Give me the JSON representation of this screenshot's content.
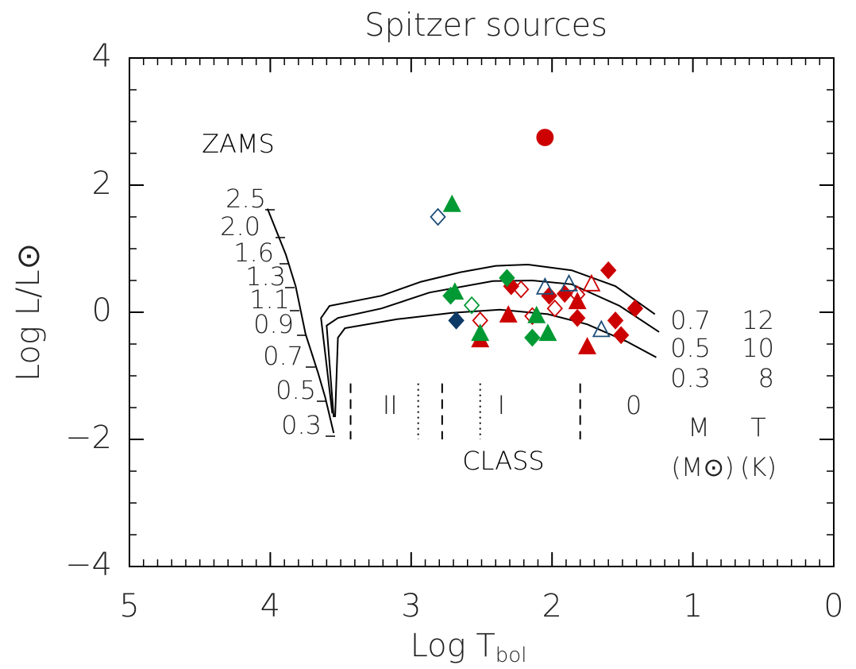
{
  "chart_data": {
    "type": "scatter",
    "title": "Spitzer sources",
    "xlabel": "Log T",
    "xlabel_sub": "bol",
    "ylabel": "Log L/L⊙",
    "xlim": [
      5,
      0
    ],
    "ylim": [
      -4,
      4
    ],
    "xticks": [
      5,
      4,
      3,
      2,
      1,
      0
    ],
    "yticks": [
      {
        "value": -4,
        "label": "−4"
      },
      {
        "value": -2,
        "label": "−2"
      },
      0,
      2,
      4
    ],
    "series": [
      {
        "color": "#cc0000",
        "marker": "circle",
        "filled": true,
        "x": [
          2.05
        ],
        "y": [
          2.75
        ]
      },
      {
        "color": "#cc0000",
        "marker": "diamond",
        "filled": true,
        "x": [
          2.29,
          2.02,
          1.91,
          1.82,
          1.6,
          1.55,
          1.51,
          1.41
        ],
        "y": [
          0.41,
          0.26,
          0.29,
          -0.09,
          0.66,
          -0.13,
          -0.36,
          0.06
        ]
      },
      {
        "color": "#cc0000",
        "marker": "diamond",
        "filled": false,
        "x": [
          2.51,
          2.22,
          2.14,
          1.98,
          1.82
        ],
        "y": [
          -0.13,
          0.36,
          -0.06,
          0.06,
          0.28
        ]
      },
      {
        "color": "#cc0000",
        "marker": "triangle",
        "filled": true,
        "x": [
          2.51,
          2.31,
          1.82,
          1.75
        ],
        "y": [
          -0.44,
          -0.05,
          0.16,
          -0.55
        ]
      },
      {
        "color": "#cc0000",
        "marker": "triangle",
        "filled": false,
        "x": [
          1.72
        ],
        "y": [
          0.44
        ]
      },
      {
        "color": "#009933",
        "marker": "triangle",
        "filled": true,
        "x": [
          2.71,
          2.69,
          2.51,
          2.11,
          2.03
        ],
        "y": [
          1.69,
          0.31,
          -0.34,
          -0.06,
          -0.34
        ]
      },
      {
        "color": "#009933",
        "marker": "diamond",
        "filled": true,
        "x": [
          2.72,
          2.32,
          2.14
        ],
        "y": [
          0.26,
          0.54,
          -0.4
        ]
      },
      {
        "color": "#009933",
        "marker": "diamond",
        "filled": false,
        "x": [
          2.57
        ],
        "y": [
          0.11
        ]
      },
      {
        "color": "#1f4e79",
        "marker": "diamond",
        "filled": false,
        "x": [
          2.81
        ],
        "y": [
          1.5
        ]
      },
      {
        "color": "#0d3a66",
        "marker": "diamond",
        "filled": true,
        "x": [
          2.68
        ],
        "y": [
          -0.13
        ]
      },
      {
        "color": "#1f4e79",
        "marker": "triangle",
        "filled": false,
        "x": [
          2.05,
          1.88,
          1.65
        ],
        "y": [
          0.39,
          0.44,
          -0.28
        ]
      }
    ],
    "tracks": [
      {
        "mass": 0.7,
        "temp": 12,
        "x": [
          3.56,
          3.64,
          3.58,
          3.44,
          3.21,
          2.93,
          2.65,
          2.4,
          2.17,
          1.86,
          1.55,
          1.27
        ],
        "y": [
          -1.59,
          -0.09,
          0.1,
          0.16,
          0.26,
          0.48,
          0.63,
          0.73,
          0.75,
          0.66,
          0.41,
          -0.03
        ]
      },
      {
        "mass": 0.5,
        "temp": 10,
        "x": [
          3.55,
          3.6,
          3.52,
          3.21,
          2.87,
          2.42,
          2.14,
          1.86,
          1.52,
          1.24
        ],
        "y": [
          -1.65,
          -0.21,
          -0.09,
          0.06,
          0.31,
          0.49,
          0.5,
          0.44,
          0.1,
          -0.31
        ]
      },
      {
        "mass": 0.3,
        "temp": 8,
        "x": [
          3.54,
          3.52,
          3.47,
          3.1,
          2.71,
          2.37,
          2.03,
          1.75,
          1.47,
          1.26
        ],
        "y": [
          -1.65,
          -0.4,
          -0.25,
          -0.11,
          -0.01,
          0.04,
          -0.03,
          -0.19,
          -0.46,
          -0.71
        ]
      }
    ],
    "track_headers": {
      "mass": "M",
      "temp": "T",
      "mass_unit": "(M⊙)",
      "temp_unit": "(K)"
    },
    "zams": {
      "label": "ZAMS",
      "x": [
        4.02,
        3.89,
        3.82,
        3.75,
        3.66,
        3.61,
        3.55
      ],
      "y": [
        1.63,
        0.91,
        0.41,
        -0.34,
        -0.96,
        -1.34,
        -1.9
      ],
      "masses": [
        "2.5",
        "2.0",
        "1.6",
        "1.3",
        "1.1",
        "0.9",
        "0.7",
        "0.5",
        "0.3"
      ]
    },
    "class_label": "CLASS",
    "class_boundaries": [
      {
        "x": 3.43,
        "style": "dashed"
      },
      {
        "x": 2.95,
        "style": "dotted"
      },
      {
        "x": 2.78,
        "style": "dashed"
      },
      {
        "x": 2.51,
        "style": "dotted"
      },
      {
        "x": 1.8,
        "style": "dashed"
      }
    ],
    "class_range_y": [
      -1.12,
      -2.0
    ],
    "class_labels": [
      {
        "label": "II",
        "x": 3.15
      },
      {
        "label": "I",
        "x": 2.36
      },
      {
        "label": "0",
        "x": 1.42
      }
    ]
  }
}
